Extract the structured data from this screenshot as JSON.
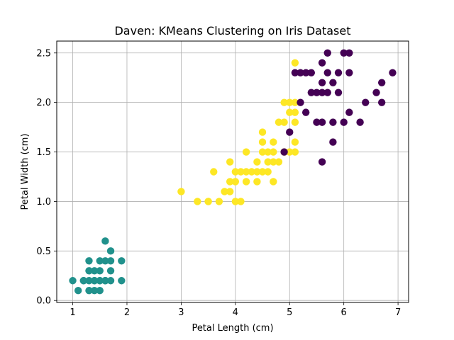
{
  "chart_data": {
    "type": "scatter",
    "title": "Daven: KMeans Clustering on Iris Dataset",
    "xlabel": "Petal Length (cm)",
    "ylabel": "Petal Width (cm)",
    "xlim": [
      0.705,
      7.195
    ],
    "ylim": [
      -0.02,
      2.62
    ],
    "xticks": [
      1,
      2,
      3,
      4,
      5,
      6,
      7
    ],
    "xtick_labels": [
      "1",
      "2",
      "3",
      "4",
      "5",
      "6",
      "7"
    ],
    "yticks": [
      0.0,
      0.5,
      1.0,
      1.5,
      2.0,
      2.5
    ],
    "ytick_labels": [
      "0.0",
      "0.5",
      "1.0",
      "1.5",
      "2.0",
      "2.5"
    ],
    "grid": true,
    "colors": {
      "cluster_teal": "#21918c",
      "cluster_yellow": "#fde725",
      "cluster_purple": "#440154",
      "grid": "#b0b0b0",
      "axis": "#000000"
    },
    "series": [
      {
        "color": "#21918c",
        "points": [
          [
            1.4,
            0.2
          ],
          [
            1.3,
            0.2
          ],
          [
            1.5,
            0.2
          ],
          [
            1.7,
            0.4
          ],
          [
            1.4,
            0.3
          ],
          [
            1.5,
            0.1
          ],
          [
            1.6,
            0.2
          ],
          [
            1.1,
            0.1
          ],
          [
            1.2,
            0.2
          ],
          [
            1.3,
            0.4
          ],
          [
            1.3,
            0.3
          ],
          [
            1.7,
            0.3
          ],
          [
            1.5,
            0.3
          ],
          [
            1.0,
            0.2
          ],
          [
            1.7,
            0.5
          ],
          [
            1.9,
            0.2
          ],
          [
            1.6,
            0.4
          ],
          [
            1.5,
            0.4
          ],
          [
            1.4,
            0.1
          ],
          [
            1.6,
            0.6
          ],
          [
            1.9,
            0.4
          ],
          [
            1.2,
            0.2
          ],
          [
            1.3,
            0.1
          ],
          [
            1.6,
            0.2
          ],
          [
            1.7,
            0.2
          ],
          [
            1.5,
            0.2
          ],
          [
            1.4,
            0.2
          ],
          [
            1.6,
            0.2
          ]
        ]
      },
      {
        "color": "#fde725",
        "points": [
          [
            3.0,
            1.1
          ],
          [
            3.3,
            1.0
          ],
          [
            3.5,
            1.0
          ],
          [
            3.5,
            1.0
          ],
          [
            3.6,
            1.3
          ],
          [
            3.7,
            1.0
          ],
          [
            3.8,
            1.1
          ],
          [
            3.9,
            1.1
          ],
          [
            3.9,
            1.2
          ],
          [
            3.9,
            1.4
          ],
          [
            4.0,
            1.0
          ],
          [
            4.0,
            1.2
          ],
          [
            4.0,
            1.3
          ],
          [
            4.1,
            1.0
          ],
          [
            4.1,
            1.3
          ],
          [
            4.2,
            1.2
          ],
          [
            4.2,
            1.3
          ],
          [
            4.2,
            1.5
          ],
          [
            4.3,
            1.3
          ],
          [
            4.4,
            1.2
          ],
          [
            4.4,
            1.3
          ],
          [
            4.4,
            1.4
          ],
          [
            4.5,
            1.3
          ],
          [
            4.5,
            1.5
          ],
          [
            4.5,
            1.6
          ],
          [
            4.5,
            1.7
          ],
          [
            4.6,
            1.3
          ],
          [
            4.6,
            1.4
          ],
          [
            4.6,
            1.5
          ],
          [
            4.7,
            1.2
          ],
          [
            4.7,
            1.4
          ],
          [
            4.7,
            1.5
          ],
          [
            4.7,
            1.6
          ],
          [
            4.8,
            1.4
          ],
          [
            4.8,
            1.8
          ],
          [
            4.9,
            1.5
          ],
          [
            4.9,
            1.8
          ],
          [
            4.9,
            2.0
          ],
          [
            5.0,
            1.5
          ],
          [
            5.0,
            1.9
          ],
          [
            5.0,
            2.0
          ],
          [
            5.1,
            1.5
          ],
          [
            5.1,
            1.6
          ],
          [
            5.1,
            1.8
          ],
          [
            5.1,
            1.9
          ],
          [
            5.1,
            2.0
          ],
          [
            5.1,
            2.4
          ]
        ]
      },
      {
        "color": "#440154",
        "points": [
          [
            4.9,
            1.5
          ],
          [
            5.0,
            1.7
          ],
          [
            5.1,
            2.3
          ],
          [
            5.2,
            2.0
          ],
          [
            5.2,
            2.3
          ],
          [
            5.3,
            1.9
          ],
          [
            5.3,
            2.3
          ],
          [
            5.4,
            2.1
          ],
          [
            5.4,
            2.3
          ],
          [
            5.5,
            1.8
          ],
          [
            5.5,
            2.1
          ],
          [
            5.6,
            1.4
          ],
          [
            5.6,
            1.8
          ],
          [
            5.6,
            2.1
          ],
          [
            5.6,
            2.2
          ],
          [
            5.6,
            2.4
          ],
          [
            5.7,
            2.1
          ],
          [
            5.7,
            2.3
          ],
          [
            5.7,
            2.5
          ],
          [
            5.8,
            1.6
          ],
          [
            5.8,
            1.8
          ],
          [
            5.8,
            2.2
          ],
          [
            5.9,
            2.1
          ],
          [
            5.9,
            2.3
          ],
          [
            6.0,
            1.8
          ],
          [
            6.0,
            2.5
          ],
          [
            6.1,
            1.9
          ],
          [
            6.1,
            2.3
          ],
          [
            6.1,
            2.5
          ],
          [
            6.3,
            1.8
          ],
          [
            6.4,
            2.0
          ],
          [
            6.6,
            2.1
          ],
          [
            6.7,
            2.0
          ],
          [
            6.7,
            2.2
          ],
          [
            6.9,
            2.3
          ]
        ]
      }
    ]
  }
}
